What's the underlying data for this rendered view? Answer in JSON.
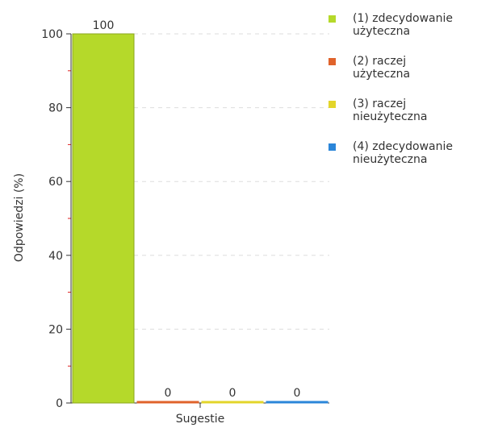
{
  "chart_data": {
    "type": "bar",
    "categories": [
      "Sugestie"
    ],
    "xlabel": "Sugestie",
    "ylabel": "Odpowiedzi (%)",
    "ylim": [
      0,
      100
    ],
    "yticks": [
      "0",
      "20",
      "40",
      "60",
      "80",
      "100"
    ],
    "grid": true,
    "legend_position": "right",
    "series": [
      {
        "name": "(1) zdecydowanie\nużyteczna",
        "values": [
          100
        ],
        "value_label": "100",
        "color": "#b5d92a"
      },
      {
        "name": "(2) raczej\nużyteczna",
        "values": [
          0
        ],
        "value_label": "0",
        "color": "#e0632b"
      },
      {
        "name": "(3) raczej\nnieużyteczna",
        "values": [
          0
        ],
        "value_label": "0",
        "color": "#e3d52a"
      },
      {
        "name": "(4) zdecydowanie\nnieużyteczna",
        "values": [
          0
        ],
        "value_label": "0",
        "color": "#2b86d9"
      }
    ]
  }
}
